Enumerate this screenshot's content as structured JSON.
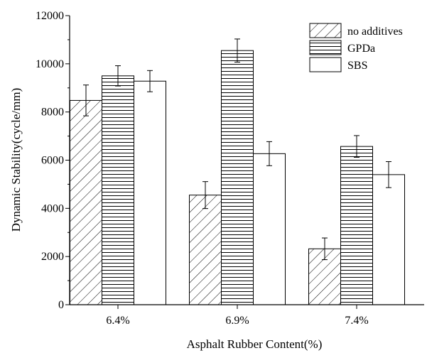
{
  "chart_data": {
    "type": "bar",
    "title": "",
    "xlabel": "Asphalt Rubber Content(%)",
    "ylabel": "Dynamic Stability(cycle/mm)",
    "categories": [
      "6.4%",
      "6.9%",
      "7.4%"
    ],
    "ylim": [
      0,
      12000
    ],
    "yticks": [
      0,
      2000,
      4000,
      6000,
      8000,
      10000,
      12000
    ],
    "ytick_labels": [
      "0",
      "2000",
      "4000",
      "6000",
      "8000",
      "10000",
      "12000"
    ],
    "grid": false,
    "legend_position": "top-right",
    "series": [
      {
        "name": "no additives",
        "pattern": "diagonal-hatch",
        "values": [
          8480,
          4550,
          2320
        ],
        "errors": [
          640,
          560,
          450
        ]
      },
      {
        "name": "GPDa",
        "pattern": "horizontal-hatch",
        "values": [
          9500,
          10550,
          6570
        ],
        "errors": [
          420,
          480,
          450
        ]
      },
      {
        "name": "SBS",
        "pattern": "solid-white",
        "values": [
          9280,
          6270,
          5400
        ],
        "errors": [
          440,
          500,
          540
        ]
      }
    ]
  }
}
